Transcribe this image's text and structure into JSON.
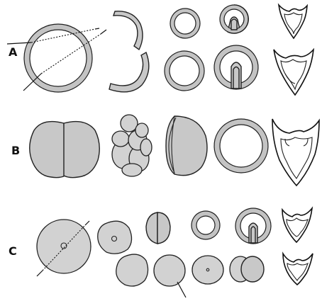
{
  "figure": {
    "rows": [
      {
        "id": "A",
        "label": "A"
      },
      {
        "id": "B",
        "label": "B"
      },
      {
        "id": "C",
        "label": "C"
      }
    ]
  },
  "colors": {
    "fill": "#c8c8c8",
    "stroke": "#222222",
    "background": "#ffffff"
  }
}
